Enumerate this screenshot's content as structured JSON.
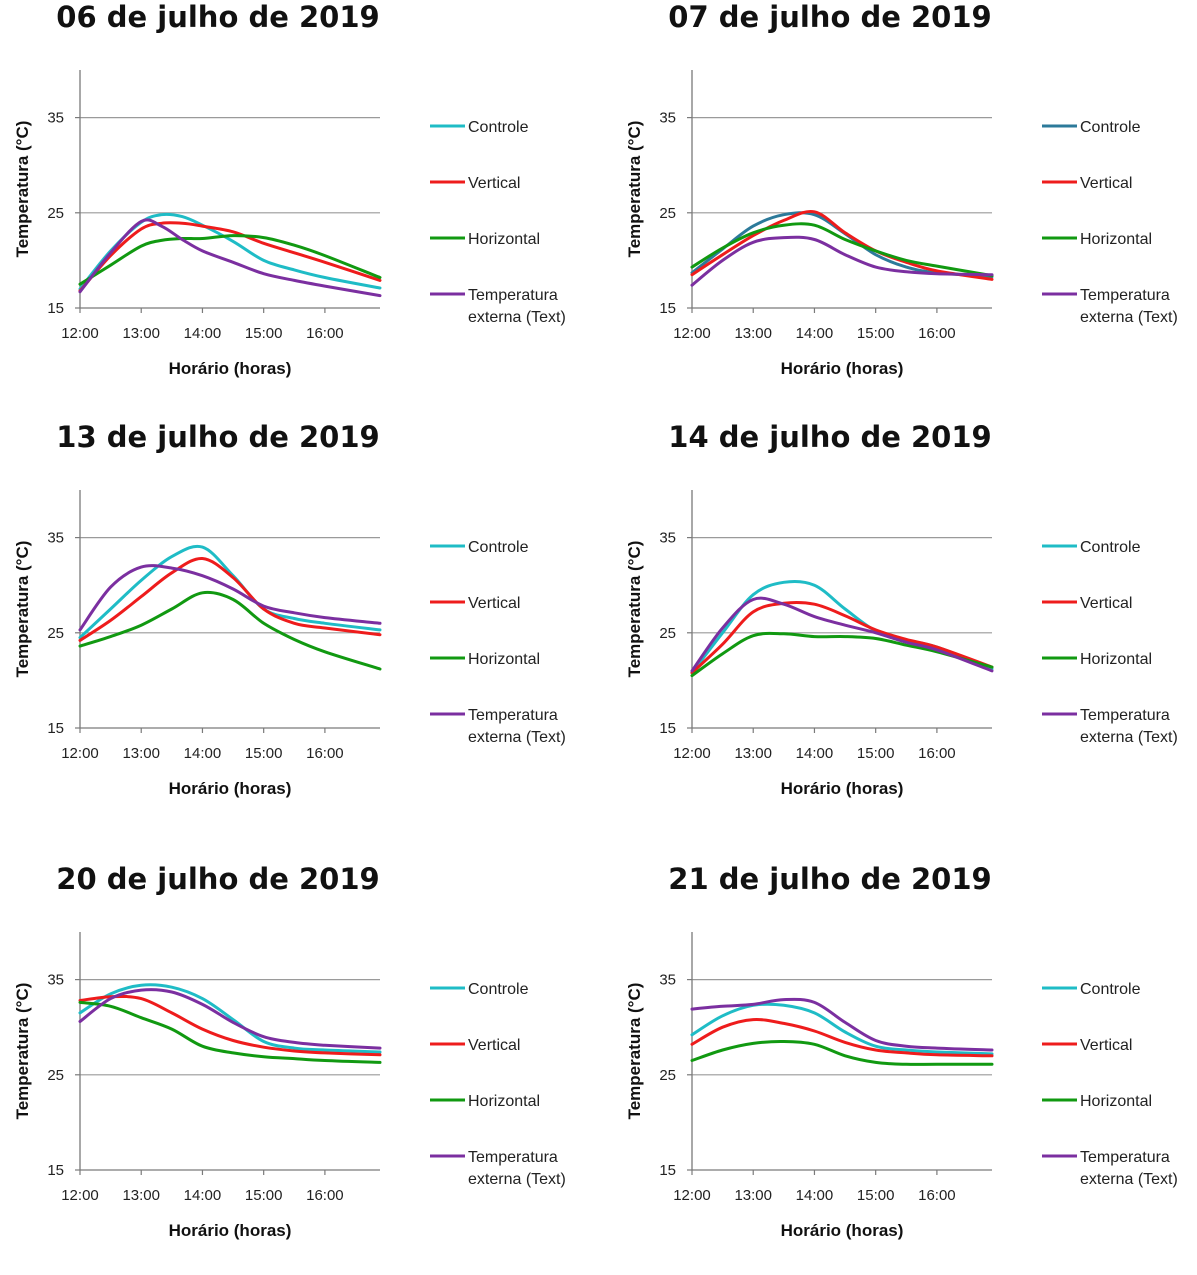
{
  "chart_data": [
    {
      "type": "line",
      "title": "06 de julho de 2019",
      "xlabel": "Horário (horas)",
      "ylabel": "Temperatura (°C)",
      "ylim": [
        15,
        40
      ],
      "yticks": [
        15,
        25,
        35
      ],
      "xlim": [
        12,
        16.9
      ],
      "xticks": [
        {
          "value": 12,
          "label": "12:00"
        },
        {
          "value": 13,
          "label": "13:00"
        },
        {
          "value": 14,
          "label": "14:00"
        },
        {
          "value": 15,
          "label": "15:00"
        },
        {
          "value": 16,
          "label": "16:00"
        }
      ],
      "grid": "horizontal",
      "legend": "right",
      "x": [
        12,
        12.5,
        13,
        13.33,
        13.67,
        14,
        14.5,
        15,
        15.5,
        16,
        16.9
      ],
      "series": [
        {
          "name": "Controle",
          "color": "#1fbcc6",
          "values": [
            17.0,
            21.0,
            24.0,
            24.8,
            24.6,
            23.7,
            22.0,
            20.0,
            19.0,
            18.2,
            17.1
          ]
        },
        {
          "name": "Vertical",
          "color": "#ee1c1c",
          "values": [
            16.8,
            20.5,
            23.3,
            23.9,
            23.9,
            23.6,
            23.0,
            21.8,
            20.8,
            19.8,
            17.9
          ]
        },
        {
          "name": "Horizontal",
          "color": "#119911",
          "values": [
            17.5,
            19.5,
            21.5,
            22.1,
            22.3,
            22.3,
            22.6,
            22.4,
            21.6,
            20.5,
            18.2
          ]
        },
        {
          "name": "Temperatura externa (Text)",
          "color": "#7b2fa0",
          "values": [
            16.7,
            20.8,
            24.1,
            23.6,
            22.2,
            21.0,
            19.8,
            18.6,
            17.9,
            17.3,
            16.3
          ]
        }
      ]
    },
    {
      "type": "line",
      "title": "07 de julho de 2019",
      "xlabel": "Horário (horas)",
      "ylabel": "Temperatura (°C)",
      "ylim": [
        15,
        40
      ],
      "yticks": [
        15,
        25,
        35
      ],
      "xlim": [
        12,
        16.9
      ],
      "xticks": [
        {
          "value": 12,
          "label": "12:00"
        },
        {
          "value": 13,
          "label": "13:00"
        },
        {
          "value": 14,
          "label": "14:00"
        },
        {
          "value": 15,
          "label": "15:00"
        },
        {
          "value": 16,
          "label": "16:00"
        }
      ],
      "grid": "horizontal",
      "legend": "right",
      "x": [
        12,
        12.5,
        13,
        13.5,
        14,
        14.5,
        15,
        15.5,
        16,
        16.9
      ],
      "series": [
        {
          "name": "Controle",
          "color": "#2c7a9a",
          "values": [
            18.7,
            21.2,
            23.6,
            24.8,
            24.8,
            22.8,
            20.6,
            19.3,
            18.7,
            18.3
          ]
        },
        {
          "name": "Vertical",
          "color": "#ee1c1c",
          "values": [
            18.5,
            20.6,
            22.6,
            24.2,
            25.1,
            22.9,
            21.0,
            19.8,
            18.9,
            18.0
          ]
        },
        {
          "name": "Horizontal",
          "color": "#119911",
          "values": [
            19.3,
            21.3,
            22.9,
            23.7,
            23.7,
            22.2,
            21.0,
            20.0,
            19.4,
            18.4
          ]
        },
        {
          "name": "Temperatura externa (Text)",
          "color": "#7b2fa0",
          "values": [
            17.4,
            20.0,
            21.9,
            22.4,
            22.2,
            20.6,
            19.3,
            18.8,
            18.6,
            18.5
          ]
        }
      ]
    },
    {
      "type": "line",
      "title": "13 de julho de 2019",
      "xlabel": "Horário (horas)",
      "ylabel": "Temperatura (°C)",
      "ylim": [
        15,
        40
      ],
      "yticks": [
        15,
        25,
        35
      ],
      "xlim": [
        12,
        16.9
      ],
      "xticks": [
        {
          "value": 12,
          "label": "12:00"
        },
        {
          "value": 13,
          "label": "13:00"
        },
        {
          "value": 14,
          "label": "14:00"
        },
        {
          "value": 15,
          "label": "15:00"
        },
        {
          "value": 16,
          "label": "16:00"
        }
      ],
      "grid": "horizontal",
      "legend": "right",
      "x": [
        12,
        12.5,
        13,
        13.5,
        14,
        14.5,
        15,
        15.5,
        16,
        16.9
      ],
      "series": [
        {
          "name": "Controle",
          "color": "#1fbcc6",
          "values": [
            24.5,
            27.5,
            30.5,
            33.0,
            34.0,
            31.0,
            27.5,
            26.5,
            26.0,
            25.3
          ]
        },
        {
          "name": "Vertical",
          "color": "#ee1c1c",
          "values": [
            24.2,
            26.3,
            28.8,
            31.3,
            32.8,
            30.8,
            27.5,
            26.0,
            25.5,
            24.8
          ]
        },
        {
          "name": "Horizontal",
          "color": "#119911",
          "values": [
            23.6,
            24.6,
            25.8,
            27.5,
            29.2,
            28.5,
            26.0,
            24.3,
            23.0,
            21.2
          ]
        },
        {
          "name": "Temperatura externa (Text)",
          "color": "#7b2fa0",
          "values": [
            25.3,
            29.8,
            31.9,
            31.8,
            31.0,
            29.6,
            27.8,
            27.1,
            26.6,
            26.0
          ]
        }
      ]
    },
    {
      "type": "line",
      "title": "14 de julho de 2019",
      "xlabel": "Horário (horas)",
      "ylabel": "Temperatura (°C)",
      "ylim": [
        15,
        40
      ],
      "yticks": [
        15,
        25,
        35
      ],
      "xlim": [
        12,
        16.9
      ],
      "xticks": [
        {
          "value": 12,
          "label": "12:00"
        },
        {
          "value": 13,
          "label": "13:00"
        },
        {
          "value": 14,
          "label": "14:00"
        },
        {
          "value": 15,
          "label": "15:00"
        },
        {
          "value": 16,
          "label": "16:00"
        }
      ],
      "grid": "horizontal",
      "legend": "right",
      "x": [
        12,
        12.5,
        13,
        13.5,
        14,
        14.5,
        15,
        15.5,
        16,
        16.9
      ],
      "series": [
        {
          "name": "Controle",
          "color": "#1fbcc6",
          "values": [
            20.8,
            25.0,
            29.0,
            30.3,
            30.0,
            27.5,
            25.2,
            24.2,
            23.5,
            21.2
          ]
        },
        {
          "name": "Vertical",
          "color": "#ee1c1c",
          "values": [
            20.8,
            23.8,
            27.2,
            28.1,
            28.0,
            26.8,
            25.3,
            24.3,
            23.5,
            21.4
          ]
        },
        {
          "name": "Horizontal",
          "color": "#119911",
          "values": [
            20.5,
            22.8,
            24.7,
            24.9,
            24.6,
            24.6,
            24.4,
            23.7,
            23.0,
            21.4
          ]
        },
        {
          "name": "Temperatura externa (Text)",
          "color": "#7b2fa0",
          "values": [
            21.0,
            25.5,
            28.5,
            28.0,
            26.7,
            25.8,
            25.0,
            24.0,
            23.2,
            21.0
          ]
        }
      ]
    },
    {
      "type": "line",
      "title": "20 de julho de 2019",
      "xlabel": "Horário (horas)",
      "ylabel": "Temperatura (°C)",
      "ylim": [
        15,
        40
      ],
      "yticks": [
        15,
        25,
        35
      ],
      "xlim": [
        12,
        16.9
      ],
      "xticks": [
        {
          "value": 12,
          "label": "12:00"
        },
        {
          "value": 13,
          "label": "13:00"
        },
        {
          "value": 14,
          "label": "14:00"
        },
        {
          "value": 15,
          "label": "15:00"
        },
        {
          "value": 16,
          "label": "16:00"
        }
      ],
      "grid": "horizontal",
      "legend": "right",
      "x": [
        12,
        12.5,
        13,
        13.5,
        14,
        14.5,
        15,
        15.5,
        16,
        16.9
      ],
      "series": [
        {
          "name": "Controle",
          "color": "#1fbcc6",
          "values": [
            31.5,
            33.5,
            34.4,
            34.2,
            33.0,
            30.8,
            28.5,
            27.8,
            27.6,
            27.4
          ]
        },
        {
          "name": "Vertical",
          "color": "#ee1c1c",
          "values": [
            32.8,
            33.2,
            33.0,
            31.5,
            29.8,
            28.6,
            27.9,
            27.5,
            27.3,
            27.1
          ]
        },
        {
          "name": "Horizontal",
          "color": "#119911",
          "values": [
            32.6,
            32.2,
            31.0,
            29.8,
            28.0,
            27.3,
            26.9,
            26.7,
            26.5,
            26.3
          ]
        },
        {
          "name": "Temperatura externa (Text)",
          "color": "#7b2fa0",
          "values": [
            30.6,
            33.0,
            33.9,
            33.7,
            32.4,
            30.5,
            29.0,
            28.4,
            28.1,
            27.8
          ]
        }
      ]
    },
    {
      "type": "line",
      "title": "21 de julho de 2019",
      "xlabel": "Horário (horas)",
      "ylabel": "Temperatura (°C)",
      "ylim": [
        15,
        40
      ],
      "yticks": [
        15,
        25,
        35
      ],
      "xlim": [
        12,
        16.9
      ],
      "xticks": [
        {
          "value": 12,
          "label": "12:00"
        },
        {
          "value": 13,
          "label": "13:00"
        },
        {
          "value": 14,
          "label": "14:00"
        },
        {
          "value": 15,
          "label": "15:00"
        },
        {
          "value": 16,
          "label": "16:00"
        }
      ],
      "grid": "horizontal",
      "legend": "right",
      "x": [
        12,
        12.5,
        13,
        13.5,
        14,
        14.5,
        15,
        15.5,
        16,
        16.9
      ],
      "series": [
        {
          "name": "Controle",
          "color": "#1fbcc6",
          "values": [
            29.2,
            31.2,
            32.3,
            32.3,
            31.5,
            29.5,
            28.0,
            27.6,
            27.4,
            27.2
          ]
        },
        {
          "name": "Vertical",
          "color": "#ee1c1c",
          "values": [
            28.2,
            30.0,
            30.8,
            30.4,
            29.6,
            28.4,
            27.6,
            27.3,
            27.1,
            27.0
          ]
        },
        {
          "name": "Horizontal",
          "color": "#119911",
          "values": [
            26.5,
            27.6,
            28.3,
            28.5,
            28.2,
            27.0,
            26.3,
            26.1,
            26.1,
            26.1
          ]
        },
        {
          "name": "Temperatura externa (Text)",
          "color": "#7b2fa0",
          "values": [
            31.9,
            32.2,
            32.4,
            32.9,
            32.6,
            30.5,
            28.6,
            28.0,
            27.8,
            27.6
          ]
        }
      ]
    }
  ]
}
